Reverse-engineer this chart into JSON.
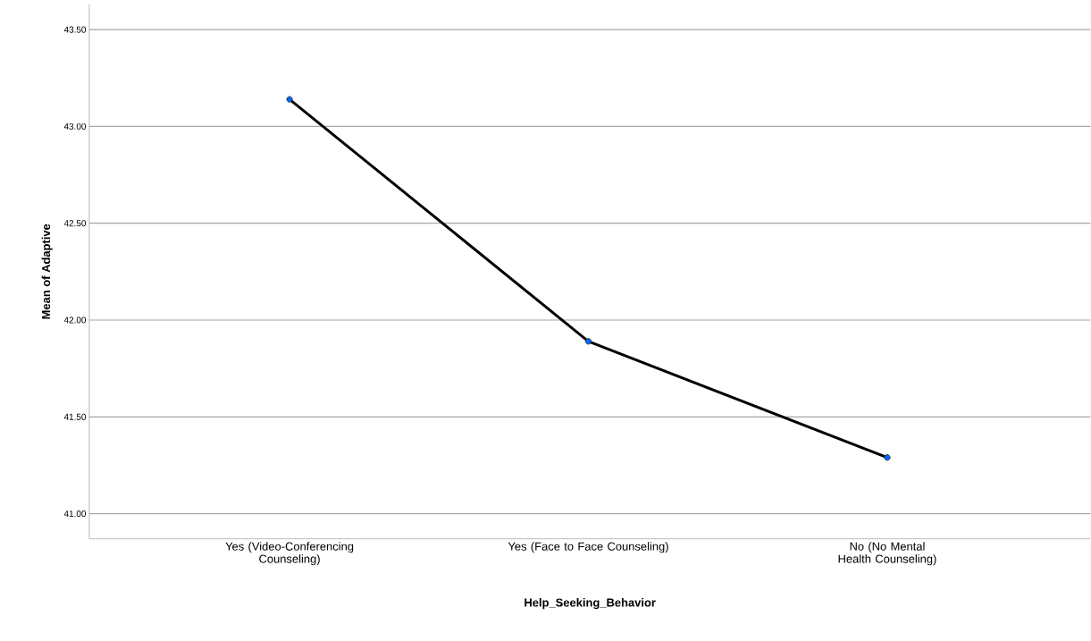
{
  "chart_data": {
    "type": "line",
    "xlabel": "Help_Seeking_Behavior",
    "ylabel": "Mean of Adaptive",
    "categories": [
      "Yes (Video-Conferencing Counseling)",
      "Yes (Face to Face Counseling)",
      "No (No Mental Health Counseling)"
    ],
    "series": [
      {
        "color": "#000000",
        "values": [
          43.14,
          41.89,
          41.29
        ]
      }
    ],
    "ylim": [
      40.87,
      43.63
    ],
    "yticks": [
      {
        "value": 41.0,
        "label": "41.00"
      },
      {
        "value": 41.5,
        "label": "41.50"
      },
      {
        "value": 42.0,
        "label": "42.00"
      },
      {
        "value": 42.5,
        "label": "42.50"
      },
      {
        "value": 43.0,
        "label": "43.00"
      },
      {
        "value": 43.5,
        "label": "43.50"
      }
    ],
    "grid": "y",
    "marker": "circle",
    "line_style": "solid"
  }
}
